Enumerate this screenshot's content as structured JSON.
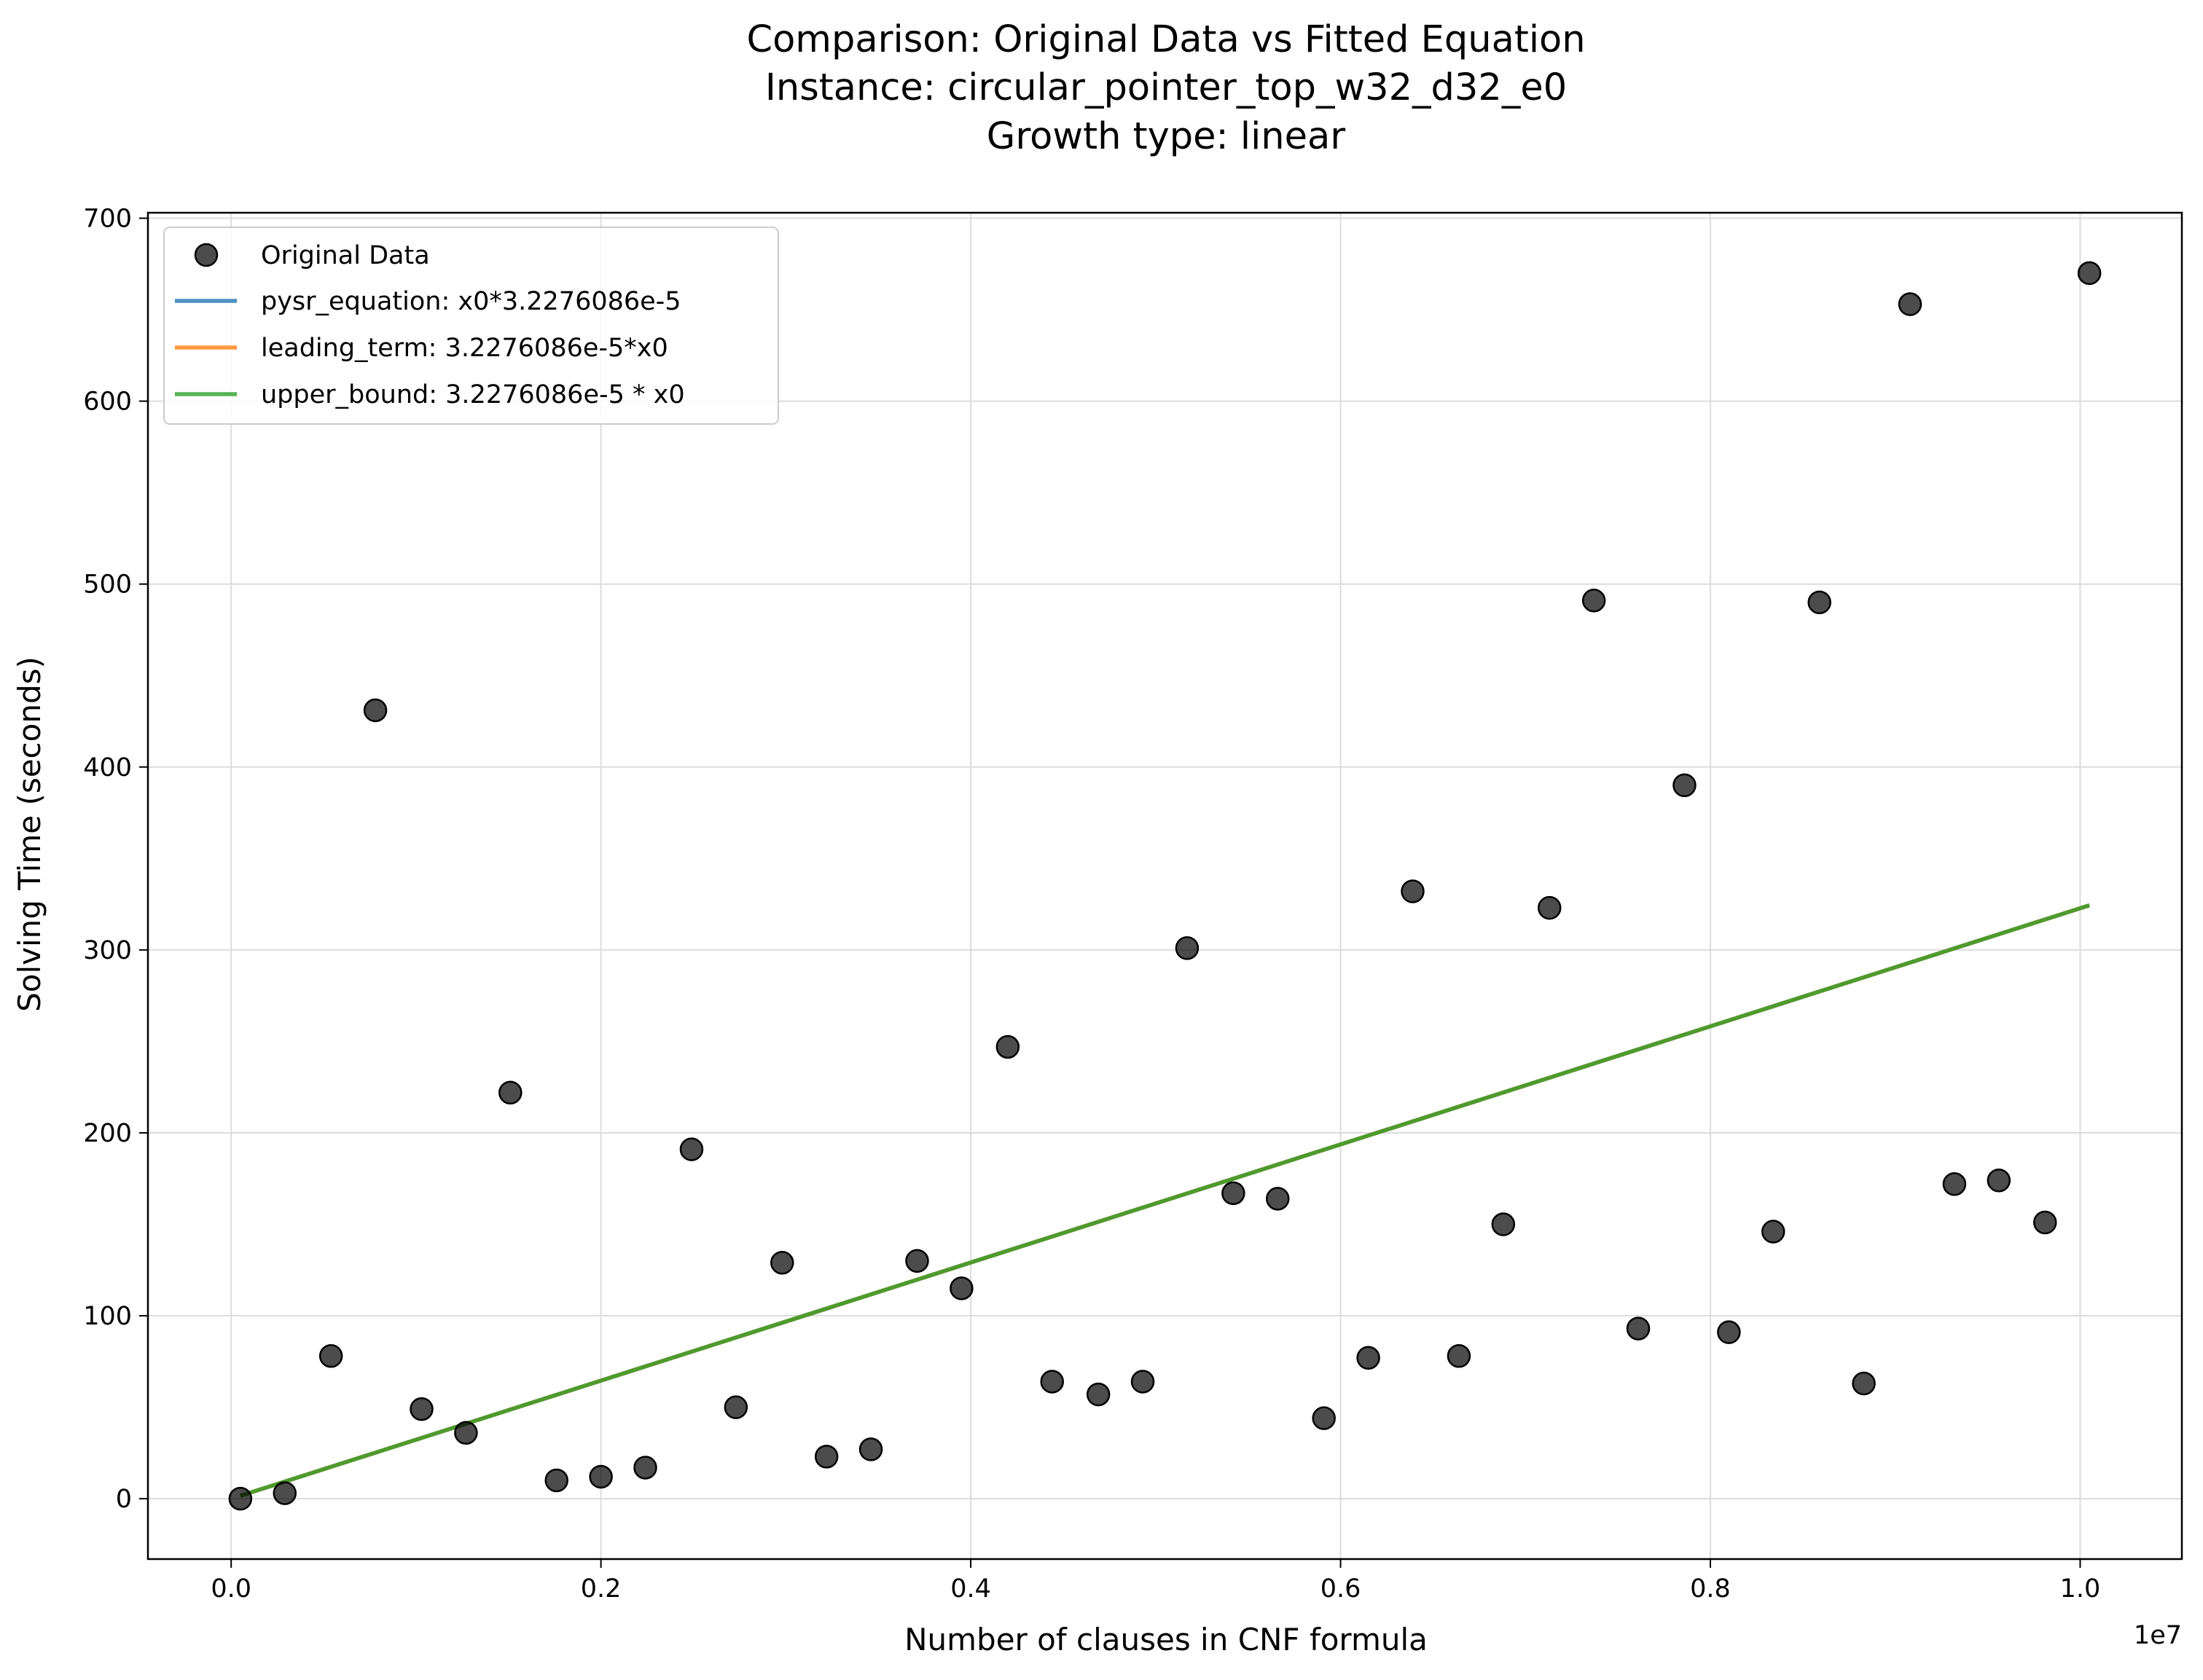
{
  "chart_data": {
    "type": "scatter",
    "title_lines": [
      "Comparison: Original Data vs Fitted Equation",
      "Instance: circular_pointer_top_w32_d32_e0",
      "Growth type: linear"
    ],
    "xlabel": "Number of clauses in CNF formula",
    "ylabel": "Solving Time (seconds)",
    "x_offset_label": "1e7",
    "x_scale": 10000000,
    "xlim": [
      -0.045,
      1.055
    ],
    "ylim": [
      -33,
      703
    ],
    "x_ticks": [
      0.0,
      0.2,
      0.4,
      0.6,
      0.8,
      1.0
    ],
    "x_tick_labels": [
      "0.0",
      "0.2",
      "0.4",
      "0.6",
      "0.8",
      "1.0"
    ],
    "y_ticks": [
      0,
      100,
      200,
      300,
      400,
      500,
      600,
      700
    ],
    "y_tick_labels": [
      "0",
      "100",
      "200",
      "300",
      "400",
      "500",
      "600",
      "700"
    ],
    "grid": true,
    "legend_position": "top-left",
    "colors": {
      "points": "#000000",
      "pysr_equation": "#1f77b4",
      "leading_term": "#ff7f0e",
      "upper_bound": "#2ca02c"
    },
    "scatter_series": {
      "name": "Original Data",
      "points": [
        [
          0.005,
          0
        ],
        [
          0.029,
          3
        ],
        [
          0.054,
          78
        ],
        [
          0.078,
          431
        ],
        [
          0.103,
          49
        ],
        [
          0.127,
          36
        ],
        [
          0.151,
          222
        ],
        [
          0.176,
          10
        ],
        [
          0.2,
          12
        ],
        [
          0.224,
          17
        ],
        [
          0.249,
          191
        ],
        [
          0.273,
          50
        ],
        [
          0.298,
          129
        ],
        [
          0.322,
          23
        ],
        [
          0.346,
          27
        ],
        [
          0.371,
          130
        ],
        [
          0.395,
          115
        ],
        [
          0.42,
          247
        ],
        [
          0.444,
          64
        ],
        [
          0.469,
          57
        ],
        [
          0.493,
          64
        ],
        [
          0.517,
          301
        ],
        [
          0.542,
          167
        ],
        [
          0.566,
          164
        ],
        [
          0.591,
          44
        ],
        [
          0.615,
          77
        ],
        [
          0.639,
          332
        ],
        [
          0.664,
          78
        ],
        [
          0.688,
          150
        ],
        [
          0.713,
          323
        ],
        [
          0.737,
          491
        ],
        [
          0.761,
          93
        ],
        [
          0.786,
          390
        ],
        [
          0.81,
          91
        ],
        [
          0.834,
          146
        ],
        [
          0.859,
          490
        ],
        [
          0.883,
          63
        ],
        [
          0.908,
          653
        ],
        [
          0.932,
          172
        ],
        [
          0.956,
          174
        ],
        [
          0.981,
          151
        ],
        [
          1.005,
          670
        ]
      ]
    },
    "line_series": [
      {
        "name": "pysr_equation: x0*3.2276086e-5",
        "color": "#1f77b4",
        "x": [
          0.005,
          1.005
        ],
        "y": [
          1.6,
          324.4
        ]
      },
      {
        "name": "leading_term: 3.2276086e-5*x0",
        "color": "#ff7f0e",
        "x": [
          0.005,
          1.005
        ],
        "y": [
          1.6,
          324.4
        ]
      },
      {
        "name": "upper_bound: 3.2276086e-5 * x0",
        "color": "#2ca02c",
        "x": [
          0.005,
          1.005
        ],
        "y": [
          1.6,
          324.4
        ]
      }
    ]
  }
}
